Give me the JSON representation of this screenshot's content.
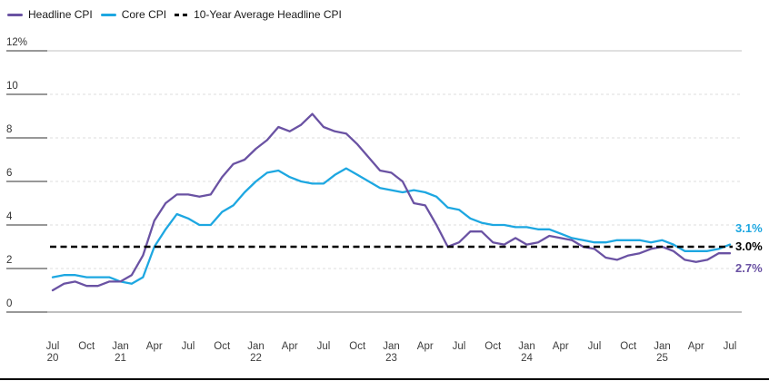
{
  "legend": [
    {
      "label": "Headline CPI",
      "color": "#6A52A3",
      "style": "solid"
    },
    {
      "label": "Core CPI",
      "color": "#1DA7E1",
      "style": "dashed-none"
    },
    {
      "label": "10-Year Average Headline CPI",
      "color": "#000000",
      "style": "dashed"
    }
  ],
  "colors": {
    "headline": "#6A52A3",
    "core": "#1DA7E1",
    "average": "#000000",
    "grid_dashed": "#dcdcdc",
    "grid_top": "#c2c2c2",
    "grid_zero": "#999999",
    "tick": "#5a5a5a"
  },
  "chart_data": {
    "type": "line",
    "x_start": "Jul 2020",
    "x_end": "Jul 2025",
    "x_tick_labels": [
      [
        "Jul",
        "20"
      ],
      [
        "Oct",
        ""
      ],
      [
        "Jan",
        "21"
      ],
      [
        "Apr",
        ""
      ],
      [
        "Jul",
        ""
      ],
      [
        "Oct",
        ""
      ],
      [
        "Jan",
        "22"
      ],
      [
        "Apr",
        ""
      ],
      [
        "Jul",
        ""
      ],
      [
        "Oct",
        ""
      ],
      [
        "Jan",
        "23"
      ],
      [
        "Apr",
        ""
      ],
      [
        "Jul",
        ""
      ],
      [
        "Oct",
        ""
      ],
      [
        "Jan",
        "24"
      ],
      [
        "Apr",
        ""
      ],
      [
        "Jul",
        ""
      ],
      [
        "Oct",
        ""
      ],
      [
        "Jan",
        "25"
      ],
      [
        "Apr",
        ""
      ],
      [
        "Jul",
        ""
      ]
    ],
    "y_ticks": [
      {
        "label": "12%",
        "value": 12
      },
      {
        "label": "10",
        "value": 10
      },
      {
        "label": "8",
        "value": 8
      },
      {
        "label": "6",
        "value": 6
      },
      {
        "label": "4",
        "value": 4
      },
      {
        "label": "2",
        "value": 2
      },
      {
        "label": "0",
        "value": 0
      }
    ],
    "ylim": [
      0,
      12
    ],
    "grid": "horizontal-dashed",
    "legend_position": "top-left",
    "series": [
      {
        "name": "Core CPI",
        "color": "#1DA7E1",
        "values": [
          1.6,
          1.7,
          1.7,
          1.6,
          1.6,
          1.6,
          1.4,
          1.3,
          1.6,
          3.0,
          3.8,
          4.5,
          4.3,
          4.0,
          4.0,
          4.6,
          4.9,
          5.5,
          6.0,
          6.4,
          6.5,
          6.2,
          6.0,
          5.9,
          5.9,
          6.3,
          6.6,
          6.3,
          6.0,
          5.7,
          5.6,
          5.5,
          5.6,
          5.5,
          5.3,
          4.8,
          4.7,
          4.3,
          4.1,
          4.0,
          4.0,
          3.9,
          3.9,
          3.8,
          3.8,
          3.6,
          3.4,
          3.3,
          3.2,
          3.2,
          3.3,
          3.3,
          3.3,
          3.2,
          3.3,
          3.1,
          2.8,
          2.8,
          2.8,
          2.9,
          3.1
        ]
      },
      {
        "name": "Headline CPI",
        "color": "#6A52A3",
        "values": [
          1.0,
          1.3,
          1.4,
          1.2,
          1.2,
          1.4,
          1.4,
          1.7,
          2.6,
          4.2,
          5.0,
          5.4,
          5.4,
          5.3,
          5.4,
          6.2,
          6.8,
          7.0,
          7.5,
          7.9,
          8.5,
          8.3,
          8.6,
          9.1,
          8.5,
          8.3,
          8.2,
          7.7,
          7.1,
          6.5,
          6.4,
          6.0,
          5.0,
          4.9,
          4.0,
          3.0,
          3.2,
          3.7,
          3.7,
          3.2,
          3.1,
          3.4,
          3.1,
          3.2,
          3.5,
          3.4,
          3.3,
          3.0,
          2.9,
          2.5,
          2.4,
          2.6,
          2.7,
          2.9,
          3.0,
          2.8,
          2.4,
          2.3,
          2.4,
          2.7,
          2.7
        ]
      },
      {
        "name": "10-Year Average Headline CPI",
        "color": "#000000",
        "dashed": true,
        "constant": 3.0
      }
    ],
    "end_labels": [
      {
        "text": "3.1%",
        "value": 3.1,
        "color": "#1DA7E1",
        "series": "Core CPI"
      },
      {
        "text": "3.0%",
        "value": 3.0,
        "color": "#000000",
        "series": "10-Year Average Headline CPI"
      },
      {
        "text": "2.7%",
        "value": 2.7,
        "color": "#6A52A3",
        "series": "Headline CPI"
      }
    ]
  }
}
